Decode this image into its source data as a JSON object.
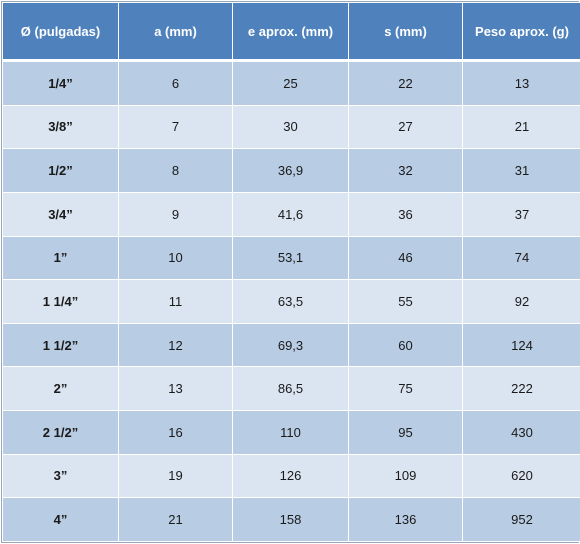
{
  "table": {
    "headers": [
      "Ø (pulgadas)",
      "a (mm)",
      "e aprox. (mm)",
      "s (mm)",
      "Peso aprox. (g)"
    ],
    "rows": [
      [
        "1/4”",
        "6",
        "25",
        "22",
        "13"
      ],
      [
        "3/8”",
        "7",
        "30",
        "27",
        "21"
      ],
      [
        "1/2”",
        "8",
        "36,9",
        "32",
        "31"
      ],
      [
        "3/4”",
        "9",
        "41,6",
        "36",
        "37"
      ],
      [
        "1”",
        "10",
        "53,1",
        "46",
        "74"
      ],
      [
        "1 1/4”",
        "11",
        "63,5",
        "55",
        "92"
      ],
      [
        "1 1/2”",
        "12",
        "69,3",
        "60",
        "124"
      ],
      [
        "2”",
        "13",
        "86,5",
        "75",
        "222"
      ],
      [
        "2 1/2”",
        "16",
        "110",
        "95",
        "430"
      ],
      [
        "3”",
        "19",
        "126",
        "109",
        "620"
      ],
      [
        "4”",
        "21",
        "158",
        "136",
        "952"
      ]
    ]
  },
  "colors": {
    "header_bg": "#4f81bd",
    "row_dark": "#b8cce4",
    "row_light": "#dbe5f1"
  }
}
